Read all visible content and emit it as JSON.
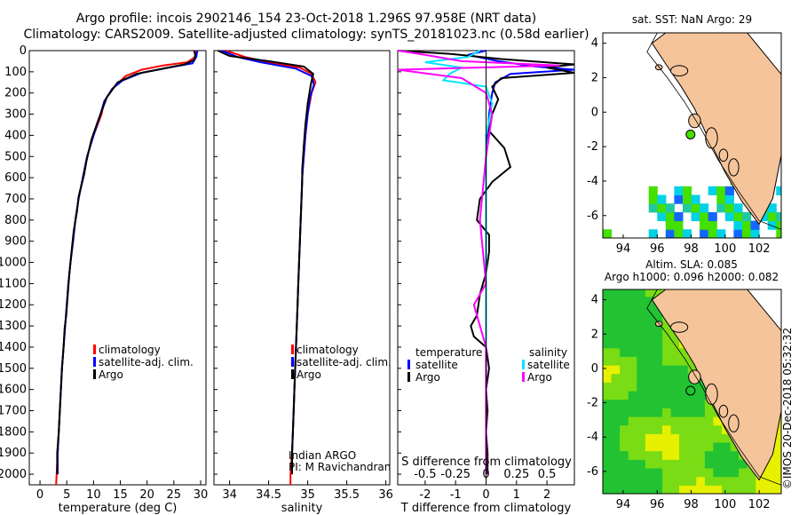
{
  "header": {
    "line1": "Argo profile: incois 2902146_154 23-Oct-2018 1.296S 97.958E (NRT data)",
    "line2": "Climatology: CARS2009. Satellite-adjusted climatology: synTS_20181023.nc (0.58d earlier)"
  },
  "colors": {
    "climatology": "#ff0000",
    "satellite": "#0000ff",
    "argo": "#000000",
    "sat_salinity": "#00e5ff",
    "argo_salinity": "#ff00ff",
    "land": "#f5c49a",
    "sst_cyan": "#00d2e6",
    "sst_teal": "#22c8a0",
    "sst_green": "#44e000",
    "sst_blue": "#1466ff",
    "sla_low": "#22c233",
    "sla_mid": "#7adc14",
    "sla_high": "#e6f000"
  },
  "chart_data": [
    {
      "type": "line",
      "name": "temperature",
      "xlabel": "temperature (deg C)",
      "xlim": [
        -2,
        31
      ],
      "xticks": [
        "0",
        "5",
        "10",
        "15",
        "20",
        "25",
        "30"
      ],
      "ylim": [
        2050,
        0
      ],
      "yticks": [
        "0",
        "100",
        "200",
        "300",
        "400",
        "500",
        "600",
        "700",
        "800",
        "900",
        "1000",
        "1100",
        "1200",
        "1300",
        "1400",
        "1500",
        "1600",
        "1700",
        "1800",
        "1900",
        "2000"
      ],
      "legend": [
        "climatology",
        "satellite-adj. clim.",
        "Argo"
      ],
      "series": [
        {
          "name": "climatology",
          "points": [
            [
              29.2,
              0
            ],
            [
              29.0,
              30
            ],
            [
              27.5,
              55
            ],
            [
              23,
              70
            ],
            [
              19,
              90
            ],
            [
              16,
              120
            ],
            [
              13.5,
              180
            ],
            [
              12,
              240
            ],
            [
              11.5,
              300
            ],
            [
              10,
              400
            ],
            [
              8.8,
              500
            ],
            [
              8,
              600
            ],
            [
              7.2,
              700
            ],
            [
              6.6,
              800
            ],
            [
              6.1,
              900
            ],
            [
              5.7,
              1000
            ],
            [
              5.3,
              1100
            ],
            [
              5.0,
              1200
            ],
            [
              4.7,
              1300
            ],
            [
              4.4,
              1400
            ],
            [
              4.1,
              1500
            ],
            [
              3.9,
              1600
            ],
            [
              3.7,
              1700
            ],
            [
              3.5,
              1800
            ],
            [
              3.3,
              1900
            ],
            [
              3.1,
              2000
            ],
            [
              3.0,
              2050
            ]
          ]
        },
        {
          "name": "satellite",
          "points": [
            [
              29.4,
              0
            ],
            [
              29.2,
              30
            ],
            [
              28.5,
              60
            ],
            [
              24,
              80
            ],
            [
              19,
              105
            ],
            [
              15.5,
              140
            ],
            [
              13.5,
              180
            ],
            [
              12,
              240
            ],
            [
              11.3,
              300
            ],
            [
              10,
              400
            ],
            [
              8.8,
              500
            ],
            [
              8,
              600
            ],
            [
              7.2,
              700
            ],
            [
              6.6,
              800
            ],
            [
              6.2,
              900
            ],
            [
              5.7,
              1000
            ],
            [
              5.3,
              1100
            ],
            [
              5.0,
              1200
            ],
            [
              4.7,
              1300
            ],
            [
              4.4,
              1400
            ],
            [
              4.1,
              1500
            ],
            [
              3.9,
              1600
            ],
            [
              3.7,
              1700
            ],
            [
              3.5,
              1800
            ],
            [
              3.3,
              1900
            ],
            [
              3.3,
              2000
            ]
          ]
        },
        {
          "name": "argo",
          "points": [
            [
              28.8,
              0
            ],
            [
              29,
              20
            ],
            [
              28.8,
              45
            ],
            [
              27,
              65
            ],
            [
              22,
              90
            ],
            [
              18,
              110
            ],
            [
              14.5,
              150
            ],
            [
              12.5,
              220
            ],
            [
              11,
              320
            ],
            [
              9.6,
              420
            ],
            [
              8.7,
              520
            ],
            [
              8.2,
              590
            ],
            [
              7.2,
              690
            ],
            [
              6.9,
              760
            ],
            [
              6.3,
              850
            ],
            [
              5.9,
              950
            ],
            [
              5.5,
              1050
            ],
            [
              5.2,
              1150
            ],
            [
              4.9,
              1250
            ],
            [
              4.6,
              1310
            ],
            [
              4.4,
              1400
            ],
            [
              4.1,
              1500
            ],
            [
              3.9,
              1600
            ],
            [
              3.7,
              1700
            ],
            [
              3.5,
              1800
            ],
            [
              3.2,
              1900
            ],
            [
              3.2,
              2000
            ]
          ]
        }
      ]
    },
    {
      "type": "line",
      "name": "salinity",
      "xlabel": "salinity",
      "xlim": [
        33.8,
        36.05
      ],
      "xticks": [
        "34",
        "34.5",
        "35",
        "35.5",
        "36"
      ],
      "ylim": [
        2050,
        0
      ],
      "legend": [
        "climatology",
        "satellite-adj. clim.",
        "Argo"
      ],
      "annotation": [
        "Indian ARGO",
        "PI: M Ravichandran"
      ],
      "series": [
        {
          "name": "climatology",
          "points": [
            [
              33.95,
              0
            ],
            [
              34.2,
              30
            ],
            [
              34.5,
              55
            ],
            [
              34.9,
              80
            ],
            [
              35.05,
              110
            ],
            [
              35.1,
              150
            ],
            [
              35.05,
              200
            ],
            [
              35.0,
              300
            ],
            [
              34.97,
              400
            ],
            [
              34.95,
              500
            ],
            [
              34.93,
              600
            ],
            [
              34.92,
              700
            ],
            [
              34.91,
              800
            ],
            [
              34.9,
              900
            ],
            [
              34.89,
              1000
            ],
            [
              34.88,
              1100
            ],
            [
              34.87,
              1200
            ],
            [
              34.86,
              1300
            ],
            [
              34.85,
              1400
            ],
            [
              34.84,
              1500
            ],
            [
              34.83,
              1600
            ],
            [
              34.82,
              1700
            ],
            [
              34.81,
              1800
            ],
            [
              34.8,
              1900
            ],
            [
              34.78,
              2000
            ],
            [
              34.78,
              2050
            ]
          ]
        },
        {
          "name": "satellite",
          "points": [
            [
              33.9,
              0
            ],
            [
              34.1,
              30
            ],
            [
              34.4,
              55
            ],
            [
              34.85,
              85
            ],
            [
              35.05,
              120
            ],
            [
              35.08,
              160
            ],
            [
              35.03,
              220
            ],
            [
              35.0,
              300
            ],
            [
              34.97,
              400
            ],
            [
              34.95,
              500
            ],
            [
              34.93,
              600
            ],
            [
              34.92,
              700
            ],
            [
              34.91,
              800
            ],
            [
              34.9,
              900
            ],
            [
              34.89,
              1000
            ],
            [
              34.88,
              1100
            ],
            [
              34.87,
              1200
            ],
            [
              34.86,
              1300
            ],
            [
              34.85,
              1400
            ],
            [
              34.84,
              1500
            ],
            [
              34.83,
              1600
            ],
            [
              34.82,
              1700
            ],
            [
              34.81,
              1800
            ],
            [
              34.8,
              1900
            ],
            [
              34.8,
              2000
            ]
          ]
        },
        {
          "name": "argo",
          "points": [
            [
              33.85,
              0
            ],
            [
              34.0,
              25
            ],
            [
              34.5,
              50
            ],
            [
              34.95,
              75
            ],
            [
              35.07,
              110
            ],
            [
              35.04,
              160
            ],
            [
              35.0,
              250
            ],
            [
              34.97,
              350
            ],
            [
              34.95,
              450
            ],
            [
              34.93,
              560
            ],
            [
              34.93,
              620
            ],
            [
              34.92,
              700
            ],
            [
              34.91,
              800
            ],
            [
              34.9,
              900
            ],
            [
              34.89,
              1000
            ],
            [
              34.88,
              1100
            ],
            [
              34.87,
              1200
            ],
            [
              34.86,
              1300
            ],
            [
              34.85,
              1400
            ],
            [
              34.84,
              1500
            ],
            [
              34.83,
              1600
            ],
            [
              34.82,
              1700
            ],
            [
              34.81,
              1800
            ],
            [
              34.8,
              1900
            ],
            [
              34.8,
              2000
            ]
          ]
        }
      ]
    },
    {
      "type": "line",
      "name": "difference from climatology",
      "xlabel": "T difference from climatology",
      "xlabel_top": "S difference from climatology",
      "xlim": [
        -2.9,
        2.9
      ],
      "xticks": [
        "-2",
        "-1",
        "0",
        "1",
        "2"
      ],
      "xticks_top": [
        "-0.5",
        "-0.25",
        "0",
        "0.25",
        "0.5"
      ],
      "legend_left_title": "temperature",
      "legend_right_title": "salinity",
      "legend_left": [
        "satellite",
        "Argo"
      ],
      "legend_right": [
        "satellite",
        "Argo"
      ],
      "series": [
        {
          "name": "T satellite",
          "points": [
            [
              0,
              0
            ],
            [
              -0.6,
              20
            ],
            [
              0.4,
              50
            ],
            [
              1.6,
              75
            ],
            [
              2.9,
              90
            ],
            [
              0.8,
              110
            ],
            [
              0.3,
              150
            ],
            [
              0.2,
              200
            ],
            [
              0.1,
              300
            ],
            [
              0.0,
              500
            ],
            [
              0.0,
              800
            ],
            [
              0.0,
              1100
            ],
            [
              0.0,
              1400
            ],
            [
              0.0,
              1700
            ],
            [
              0.0,
              2000
            ]
          ]
        },
        {
          "name": "T Argo",
          "points": [
            [
              -2.9,
              0
            ],
            [
              -1.2,
              15
            ],
            [
              0.5,
              40
            ],
            [
              2.9,
              65
            ],
            [
              2.0,
              80
            ],
            [
              2.9,
              105
            ],
            [
              0.5,
              130
            ],
            [
              0.2,
              170
            ],
            [
              0.4,
              230
            ],
            [
              0.2,
              300
            ],
            [
              0.1,
              380
            ],
            [
              0.6,
              460
            ],
            [
              0.8,
              550
            ],
            [
              0.2,
              620
            ],
            [
              -0.2,
              700
            ],
            [
              -0.3,
              800
            ],
            [
              0.1,
              870
            ],
            [
              0.1,
              950
            ],
            [
              0.0,
              1050
            ],
            [
              -0.2,
              1150
            ],
            [
              -0.3,
              1250
            ],
            [
              -0.5,
              1300
            ],
            [
              -0.4,
              1350
            ],
            [
              0.0,
              1400
            ],
            [
              0.1,
              1500
            ],
            [
              0.0,
              1600
            ],
            [
              0.05,
              1700
            ],
            [
              0.0,
              1800
            ],
            [
              0.05,
              1900
            ],
            [
              0.05,
              2000
            ]
          ]
        },
        {
          "name": "S satellite",
          "points": [
            [
              -0.05,
              0
            ],
            [
              -0.15,
              30
            ],
            [
              -0.5,
              55
            ],
            [
              -0.2,
              80
            ],
            [
              -0.3,
              110
            ],
            [
              -0.35,
              140
            ],
            [
              0.0,
              170
            ],
            [
              0.05,
              250
            ],
            [
              0.0,
              400
            ],
            [
              0.0,
              700
            ],
            [
              0.0,
              1000
            ],
            [
              0.0,
              1300
            ],
            [
              0.0,
              1600
            ],
            [
              0.0,
              2000
            ]
          ]
        },
        {
          "name": "S Argo",
          "points": [
            [
              -2.9,
              0
            ],
            [
              -0.5,
              20
            ],
            [
              -0.2,
              50
            ],
            [
              0.6,
              70
            ],
            [
              -1.0,
              90
            ],
            [
              -0.2,
              130
            ],
            [
              0.0,
              200
            ],
            [
              0.05,
              300
            ],
            [
              0.0,
              500
            ],
            [
              -0.05,
              800
            ],
            [
              0.0,
              1100
            ],
            [
              -0.1,
              1200
            ],
            [
              0.0,
              1400
            ],
            [
              0.0,
              1700
            ],
            [
              0.0,
              2000
            ]
          ]
        }
      ]
    },
    {
      "type": "heatmap",
      "name": "sat. SST map",
      "title": "sat.  SST: NaN Argo: 29",
      "xlim": [
        92.8,
        103.3
      ],
      "ylim": [
        -7.3,
        4.6
      ],
      "xticks": [
        "94",
        "96",
        "98",
        "100",
        "102"
      ],
      "yticks": [
        "4",
        "2",
        "0",
        "-2",
        "-4",
        "-6"
      ],
      "argo_position": [
        97.96,
        -1.3
      ]
    },
    {
      "type": "heatmap",
      "name": "altimetry SLA map",
      "title1": "Altim.  SLA: 0.085",
      "title2": "Argo h1000: 0.096  h2000: 0.082",
      "xlim": [
        92.8,
        103.3
      ],
      "ylim": [
        -7.3,
        4.6
      ],
      "xticks": [
        "94",
        "96",
        "98",
        "100",
        "102"
      ],
      "yticks": [
        "4",
        "2",
        "0",
        "-2",
        "-4",
        "-6"
      ],
      "argo_position": [
        97.96,
        -1.3
      ]
    }
  ],
  "footer": {
    "stamp": "©IMOS 20-Dec-2018 05:32:32"
  }
}
